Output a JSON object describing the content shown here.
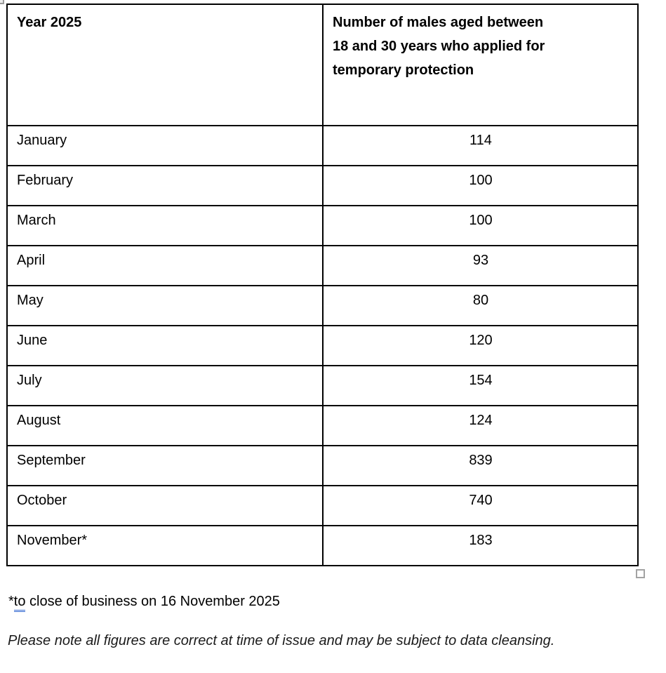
{
  "table": {
    "header": {
      "year_label": "Year 2025",
      "count_label": "Number of males aged between\n18 and 30 years who applied for\ntemporary protection"
    },
    "rows": [
      {
        "month": "January",
        "count": "114"
      },
      {
        "month": "February",
        "count": "100"
      },
      {
        "month": "March",
        "count": "100"
      },
      {
        "month": "April",
        "count": "93"
      },
      {
        "month": "May",
        "count": "80"
      },
      {
        "month": "June",
        "count": "120"
      },
      {
        "month": "July",
        "count": "154"
      },
      {
        "month": "August",
        "count": "124"
      },
      {
        "month": "September",
        "count": "839"
      },
      {
        "month": "October",
        "count": "740"
      },
      {
        "month": "November*",
        "count": "183"
      }
    ]
  },
  "footnote": {
    "prefix": "*",
    "underlined_word": "to",
    "rest": " close of business on 16 November 2025"
  },
  "disclaimer": "Please note all figures are correct at time of issue and may be subject to data cleansing.",
  "colors": {
    "table_border": "#000000",
    "text": "#000000",
    "grammar_underline_blue": "#2f66d0",
    "handle_border_gray": "#a3a3a3"
  }
}
